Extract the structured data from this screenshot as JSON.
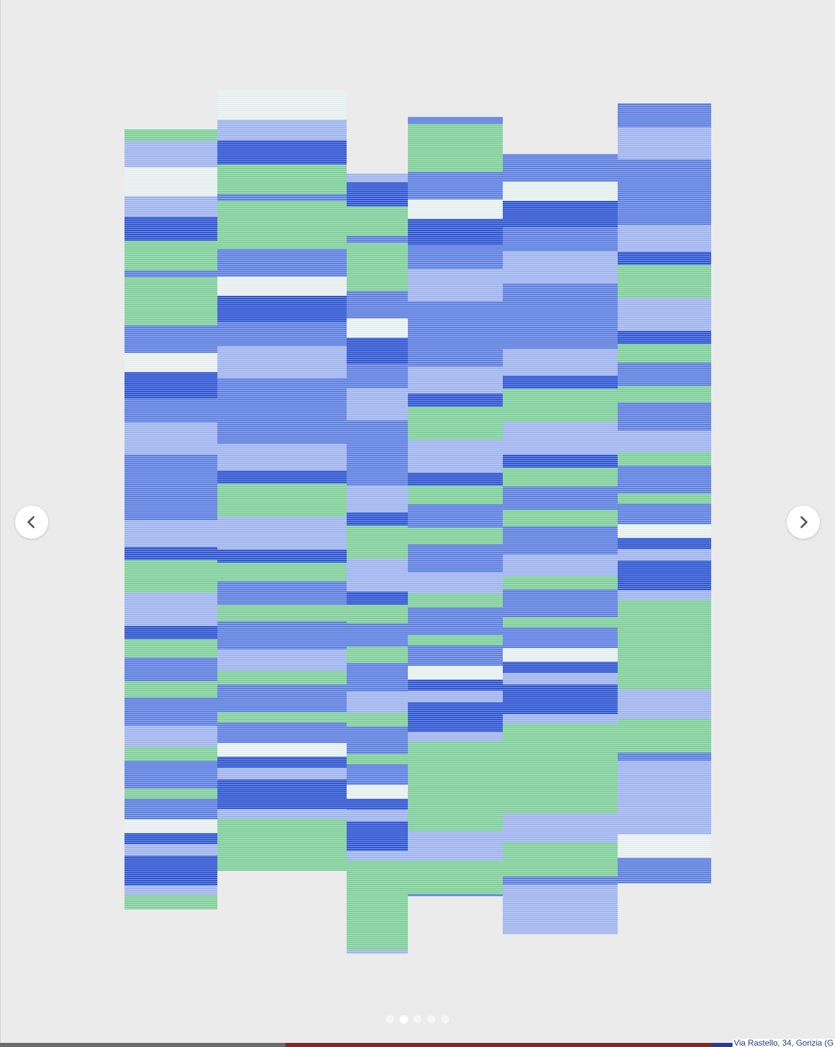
{
  "carousel": {
    "prev_label": "Previous",
    "next_label": "Next",
    "slide_count": 5,
    "active_index": 1,
    "icons": {
      "prev": "chevron-left-icon",
      "next": "chevron-right-icon"
    }
  },
  "caption": {
    "text": "Via Rastello, 34, Gorizia (G"
  },
  "colors": {
    "background": "#ecebec",
    "deep_blue": "#2f56d2",
    "mid_blue": "#5d7fe0",
    "light_blue": "#9fb4ee",
    "green": "#7fcf9a",
    "pale": "#e6efee"
  }
}
